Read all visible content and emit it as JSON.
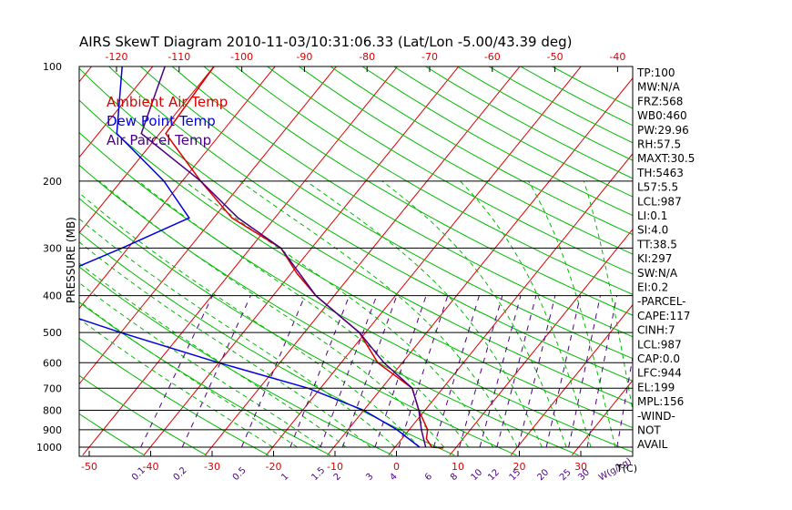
{
  "chart_data": {
    "type": "line",
    "title": "AIRS SkewT Diagram 2010-11-03/10:31:06.33 (Lat/Lon -5.00/43.39 deg)",
    "ylabel": "PRESSURE (MB)",
    "x_bottom_unit": "T(C)",
    "mixing_ratio_unit": "W(g/kg)",
    "pressure_ticks": [
      100,
      200,
      300,
      400,
      500,
      600,
      700,
      800,
      900,
      1000
    ],
    "bottom_temp_ticks": [
      -50,
      -40,
      -30,
      -20,
      -10,
      0,
      10,
      20,
      30
    ],
    "top_temp_ticks": [
      -120,
      -110,
      -100,
      -90,
      -80,
      -70,
      -60,
      -50,
      -40
    ],
    "mixing_ratio_ticks": [
      "0.1",
      "0.2",
      "0.5",
      "1",
      "1.5",
      "2",
      "3",
      "4",
      "6",
      "8",
      "10",
      "12",
      "15",
      "20",
      "25",
      "30",
      "40"
    ],
    "legend": [
      {
        "label": "Ambient Air Temp",
        "color": "#dd0000"
      },
      {
        "label": "Dew Point Temp",
        "color": "#0000dd"
      },
      {
        "label": "Air Parcel Temp",
        "color": "#4b0082"
      }
    ],
    "series": [
      {
        "name": "Ambient Air Temp",
        "color": "#dd0000",
        "points": [
          [
            100,
            -80
          ],
          [
            150,
            -79
          ],
          [
            200,
            -67
          ],
          [
            250,
            -57
          ],
          [
            300,
            -45
          ],
          [
            350,
            -39
          ],
          [
            400,
            -33
          ],
          [
            500,
            -21
          ],
          [
            600,
            -14
          ],
          [
            700,
            -5
          ],
          [
            800,
            -1
          ],
          [
            900,
            3
          ],
          [
            950,
            4
          ],
          [
            1000,
            6
          ],
          [
            1005,
            8
          ]
        ]
      },
      {
        "name": "Dew Point Temp",
        "color": "#0000dd",
        "points": [
          [
            100,
            -95
          ],
          [
            150,
            -87
          ],
          [
            200,
            -73
          ],
          [
            250,
            -64
          ],
          [
            300,
            -71
          ],
          [
            400,
            -83
          ],
          [
            500,
            -60
          ],
          [
            600,
            -40
          ],
          [
            700,
            -22
          ],
          [
            800,
            -10
          ],
          [
            900,
            -2
          ],
          [
            1000,
            4
          ]
        ]
      },
      {
        "name": "Air Parcel Temp",
        "color": "#4b0082",
        "points": [
          [
            100,
            -88
          ],
          [
            150,
            -83
          ],
          [
            200,
            -67
          ],
          [
            250,
            -56
          ],
          [
            300,
            -45
          ],
          [
            400,
            -33
          ],
          [
            500,
            -21
          ],
          [
            600,
            -13
          ],
          [
            700,
            -5
          ],
          [
            800,
            -1
          ],
          [
            900,
            2
          ],
          [
            1000,
            5
          ]
        ]
      }
    ],
    "indices": [
      "TP:100",
      "MW:N/A",
      "FRZ:568",
      "WB0:460",
      "PW:29.96",
      "RH:57.5",
      "MAXT:30.5",
      "TH:5463",
      "L57:5.5",
      "LCL:987",
      "LI:0.1",
      "SI:4.0",
      "TT:38.5",
      "KI:297",
      "SW:N/A",
      "EI:0.2",
      "-PARCEL-",
      "CAPE:117",
      "CINH:7",
      "LCL:987",
      "CAP:0.0",
      "LFC:944",
      "EL:199",
      "MPL:156",
      "-WIND-",
      "NOT",
      "AVAIL"
    ],
    "colors": {
      "isotherm": "#dd0000",
      "dry_adiabat": "#00bb00",
      "moist_adiabat": "#00bb00",
      "mixing_ratio": "#4b0082",
      "isobar": "#000000",
      "text": "#000000"
    }
  }
}
